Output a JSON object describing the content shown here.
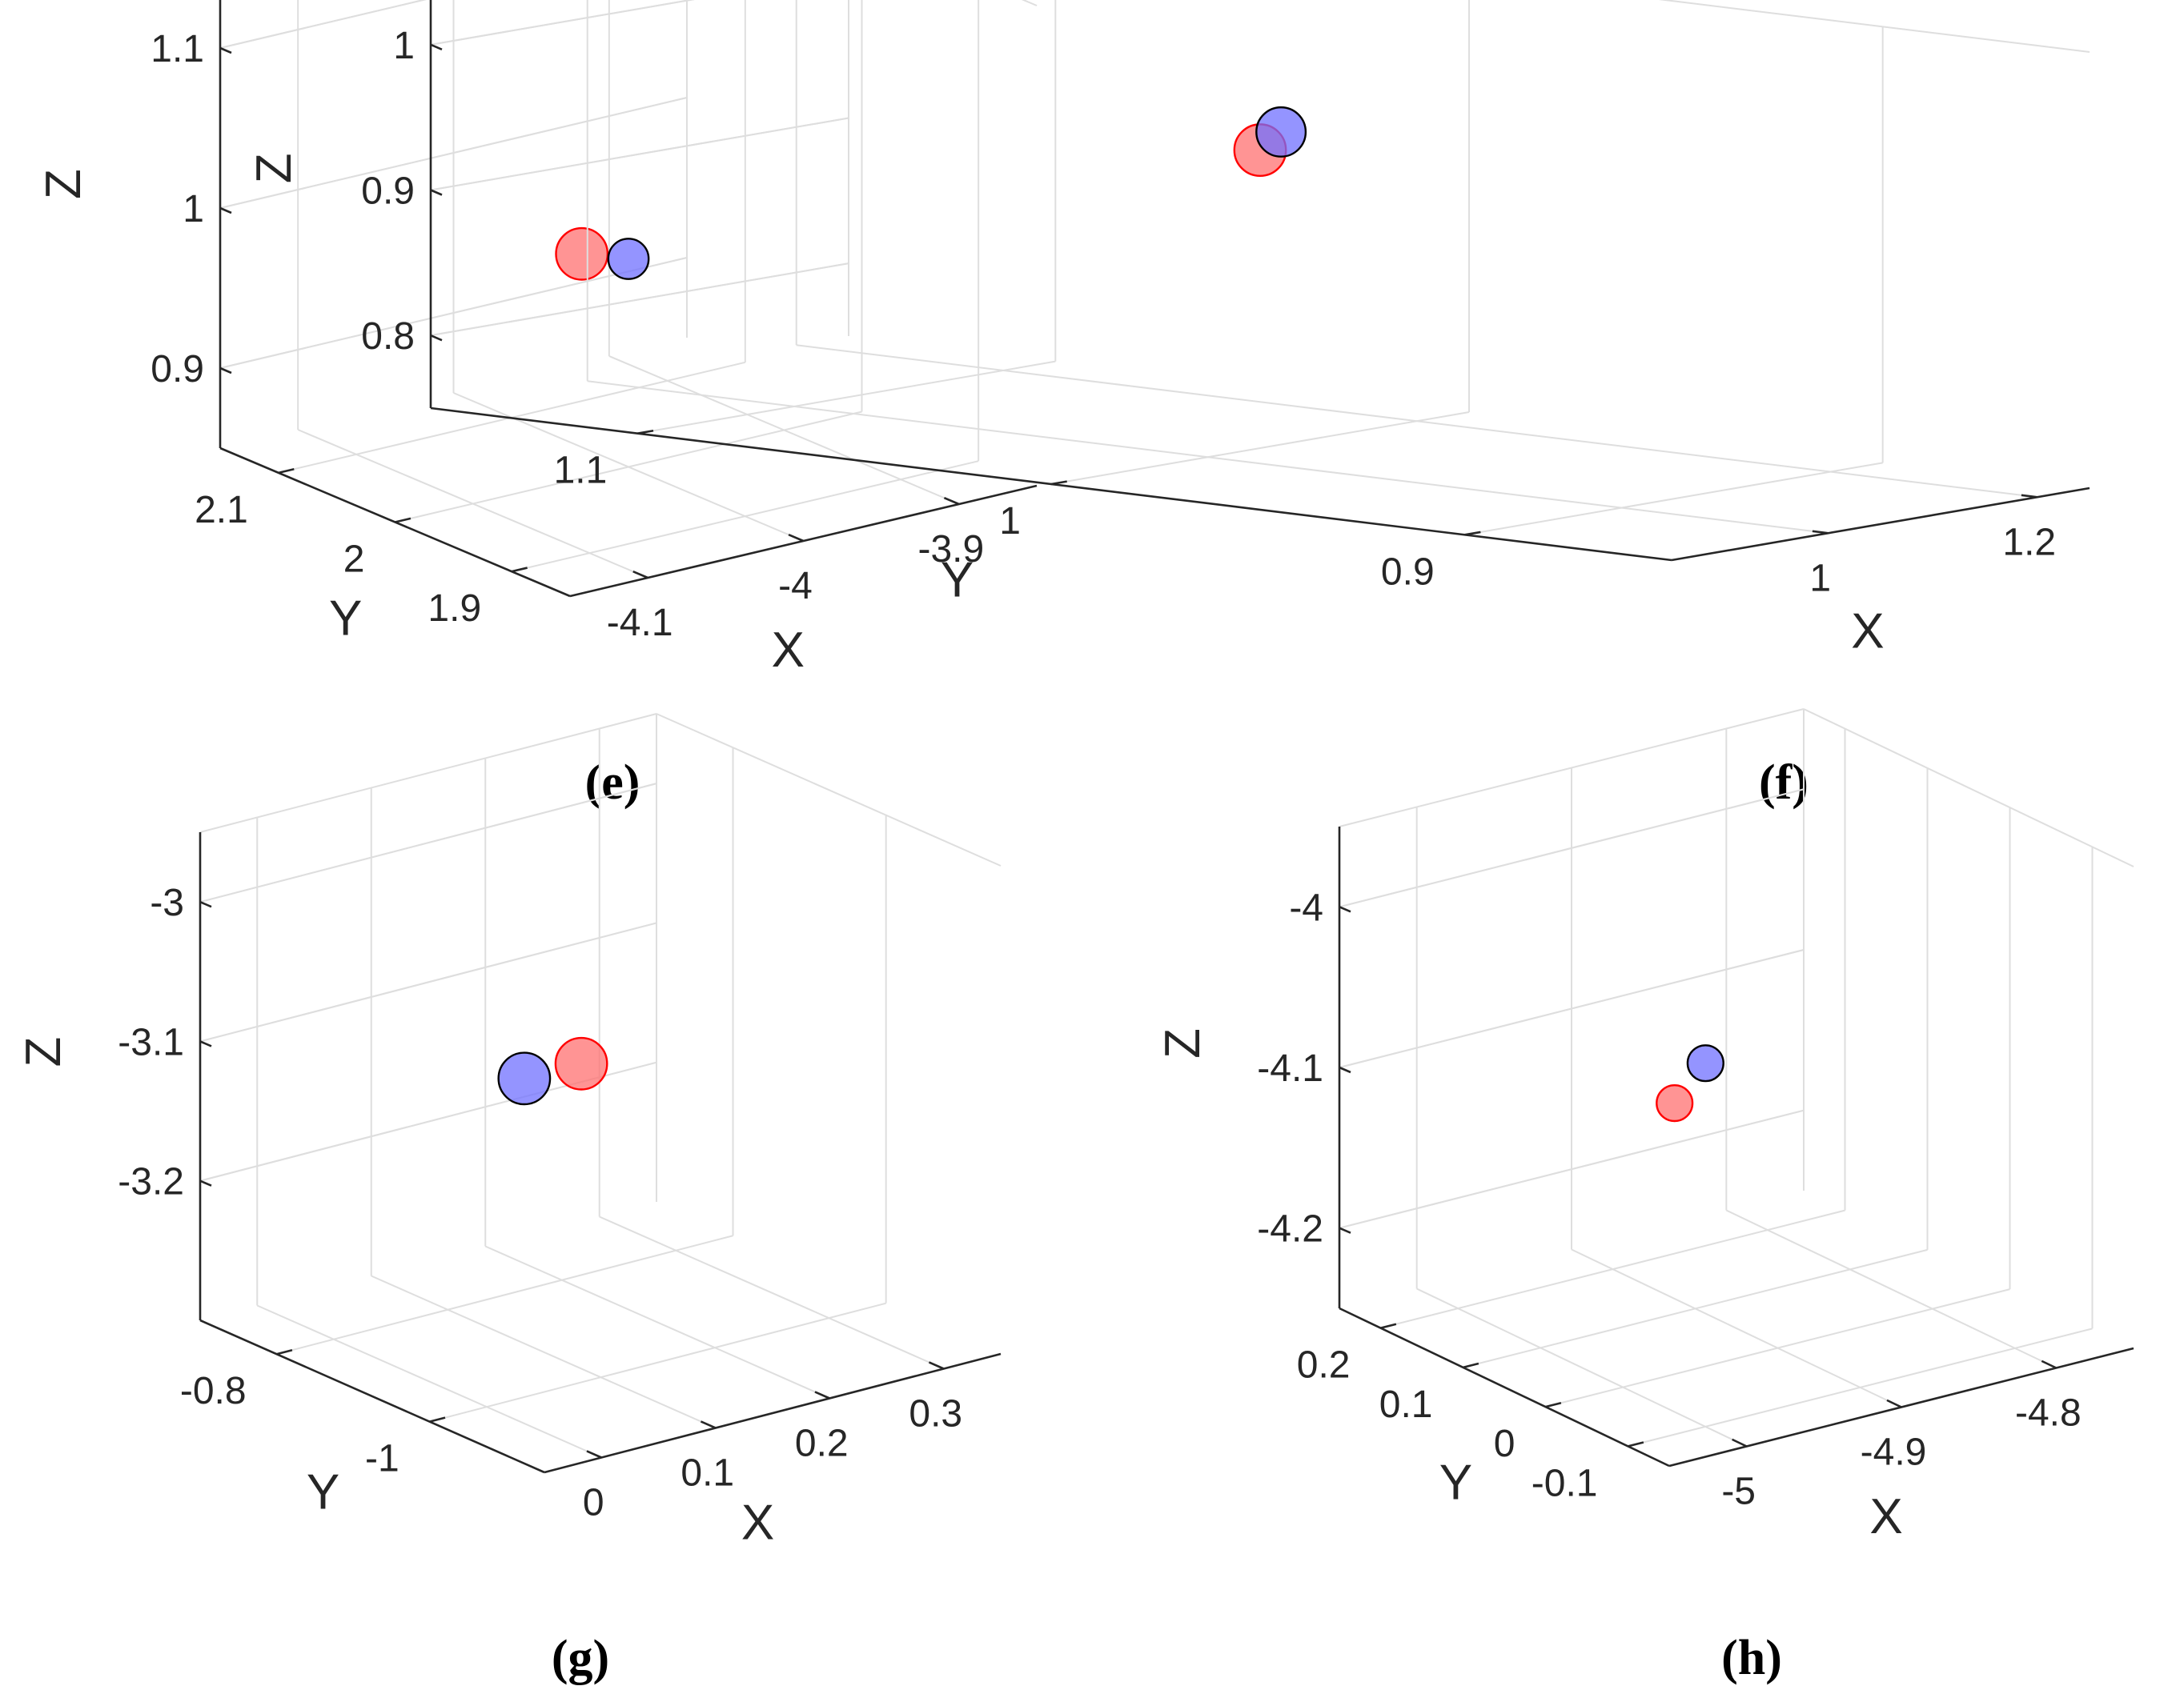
{
  "colors": {
    "pred": "#ff0000",
    "pred_fill": "#ff7070",
    "true_edge": "#000000",
    "true_fill": "#7070ff"
  },
  "chart_data": [
    {
      "type": "scatter",
      "caption": "(e)",
      "xlabel": "X",
      "ylabel": "Y",
      "zlabel": "Z",
      "x_ticks": [
        "-4.1",
        "-4",
        "-3.9"
      ],
      "y_ticks": [
        "1.9",
        "2",
        "2.1"
      ],
      "z_ticks": [
        "0.9",
        "1",
        "1.1"
      ],
      "xlim": [
        -4.15,
        -3.85
      ],
      "ylim": [
        1.85,
        2.15
      ],
      "zlim": [
        0.85,
        1.15
      ],
      "series": [
        {
          "color": "red",
          "points": [
            {
              "x": -4.03,
              "y": 2.0,
              "z": 0.99,
              "size": 1.15
            }
          ]
        },
        {
          "color": "blue",
          "points": [
            {
              "x": -4.0,
              "y": 2.0,
              "z": 0.98,
              "size": 0.9
            }
          ]
        }
      ]
    },
    {
      "type": "scatter",
      "caption": "(f)",
      "xlabel": "X",
      "ylabel": "Y",
      "zlabel": "Z",
      "x_ticks": [
        "1",
        "1.2"
      ],
      "y_ticks": [
        "0.9",
        "1",
        "1.1"
      ],
      "z_ticks": [
        "0.8",
        "0.9",
        "1"
      ],
      "xlim": [
        0.85,
        1.25
      ],
      "ylim": [
        0.85,
        1.15
      ],
      "zlim": [
        0.75,
        1.05
      ],
      "series": [
        {
          "color": "red",
          "points": [
            {
              "x": 1.05,
              "y": 1.0,
              "z": 0.955,
              "size": 1.15
            }
          ]
        },
        {
          "color": "blue",
          "points": [
            {
              "x": 1.07,
              "y": 1.0,
              "z": 0.965,
              "size": 1.1
            }
          ]
        }
      ]
    },
    {
      "type": "scatter",
      "caption": "(g)",
      "xlabel": "X",
      "ylabel": "Y",
      "zlabel": "Z",
      "x_ticks": [
        "0",
        "0.1",
        "0.2",
        "0.3"
      ],
      "y_ticks": [
        "-1",
        "-0.8"
      ],
      "z_ticks": [
        "-3.2",
        "-3.1",
        "-3"
      ],
      "xlim": [
        -0.05,
        0.35
      ],
      "ylim": [
        -1.15,
        -0.7
      ],
      "zlim": [
        -3.3,
        -2.95
      ],
      "series": [
        {
          "color": "red",
          "points": [
            {
              "x": 0.15,
              "y": -0.9,
              "z": -3.11,
              "size": 1.15
            }
          ]
        },
        {
          "color": "blue",
          "points": [
            {
              "x": 0.1,
              "y": -0.9,
              "z": -3.11,
              "size": 1.15
            }
          ]
        }
      ]
    },
    {
      "type": "scatter",
      "caption": "(h)",
      "xlabel": "X",
      "ylabel": "Y",
      "zlabel": "Z",
      "x_ticks": [
        "-5",
        "-4.9",
        "-4.8"
      ],
      "y_ticks": [
        "-0.1",
        "0",
        "0.1",
        "0.2"
      ],
      "z_ticks": [
        "-4.2",
        "-4.1",
        "-4"
      ],
      "xlim": [
        -5.05,
        -4.75
      ],
      "ylim": [
        -0.15,
        0.25
      ],
      "zlim": [
        -4.25,
        -3.95
      ],
      "series": [
        {
          "color": "red",
          "points": [
            {
              "x": -4.94,
              "y": 0.05,
              "z": -4.1,
              "size": 0.8
            }
          ]
        },
        {
          "color": "blue",
          "points": [
            {
              "x": -4.92,
              "y": 0.05,
              "z": -4.08,
              "size": 0.8
            }
          ]
        }
      ]
    }
  ]
}
